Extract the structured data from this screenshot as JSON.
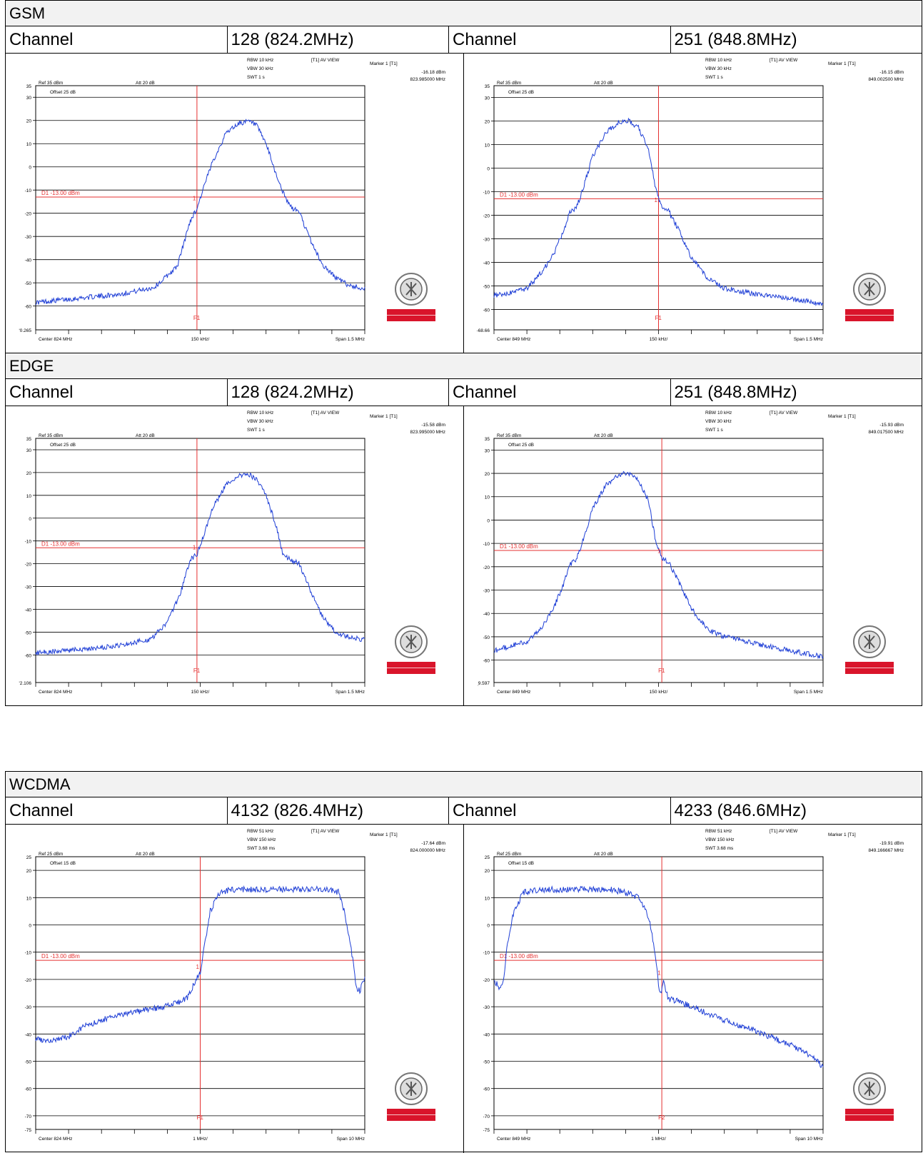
{
  "sections": [
    {
      "title": "GSM",
      "channel_label": "Channel",
      "channels": [
        "128 (824.2MHz)",
        "251 (848.8MHz)"
      ]
    },
    {
      "title": "EDGE",
      "channel_label": "Channel",
      "channels": [
        "128 (824.2MHz)",
        "251 (848.8MHz)"
      ]
    },
    {
      "title": "WCDMA",
      "channel_label": "Channel",
      "channels": [
        "4132 (826.4MHz)",
        "4233 (846.6MHz)"
      ]
    }
  ],
  "colors": {
    "trace": "#1f3fd6",
    "limit": "#e53030",
    "grid": "#000000",
    "logo_red": "#d9142b"
  },
  "logo": {
    "text": "BUREAU VERITAS",
    "year": "1828"
  },
  "chart_data": [
    {
      "type": "line",
      "section": "GSM",
      "channel": "128 (824.2MHz)",
      "rbw": "RBW 10 kHz",
      "vbw": "VBW 30 kHz",
      "swt": "SWT 1 s",
      "view": "[T1] AV VIEW",
      "marker_label": "Marker 1 [T1]",
      "marker_value": "-16.18 dBm",
      "marker_freq": "823.985000 MHz",
      "ref": "Ref 35 dBm",
      "att": "Att  20 dB",
      "offset": "Offset 25 dB",
      "limit_label": "D1 -13.00 dBm",
      "limit": -13,
      "marker_x": 0.49,
      "f1_label": "F1",
      "ylim": [
        -70.265,
        35
      ],
      "yticks": [
        30,
        20,
        10,
        0,
        -10,
        -20,
        -30,
        -40,
        -50,
        -60
      ],
      "ymin_label": "ʹ0.265",
      "ymax_label": "35",
      "center": "Center 824 MHz",
      "per_div": "150 kHz/",
      "span": "Span 1.5 MHz",
      "profile": [
        [
          0,
          -58.5
        ],
        [
          0.1,
          -57
        ],
        [
          0.25,
          -55
        ],
        [
          0.36,
          -52
        ],
        [
          0.43,
          -43
        ],
        [
          0.47,
          -23
        ],
        [
          0.49,
          -18
        ],
        [
          0.51,
          -9
        ],
        [
          0.54,
          3
        ],
        [
          0.58,
          15
        ],
        [
          0.62,
          19
        ],
        [
          0.65,
          19.5
        ],
        [
          0.67,
          18
        ],
        [
          0.7,
          10
        ],
        [
          0.73,
          -3
        ],
        [
          0.76,
          -14
        ],
        [
          0.78,
          -18
        ],
        [
          0.8,
          -19
        ],
        [
          0.83,
          -30
        ],
        [
          0.87,
          -42
        ],
        [
          0.91,
          -47.5
        ],
        [
          0.95,
          -51
        ],
        [
          1,
          -52.5
        ]
      ]
    },
    {
      "type": "line",
      "section": "GSM",
      "channel": "251 (848.8MHz)",
      "rbw": "RBW 10 kHz",
      "vbw": "VBW 30 kHz",
      "swt": "SWT 1 s",
      "view": "[T1] AV VIEW",
      "marker_label": "Marker 1 [T1]",
      "marker_value": "-16.15 dBm",
      "marker_freq": "849.002500 MHz",
      "ref": "Ref 35 dBm",
      "att": "Att  20 dB",
      "offset": "Offset 25 dB",
      "limit_label": "D1 -13.00 dBm",
      "limit": -13,
      "marker_x": 0.5,
      "f1_label": "F1",
      "ylim": [
        -68.66,
        35
      ],
      "yticks": [
        30,
        20,
        10,
        0,
        -10,
        -20,
        -30,
        -40,
        -50,
        -60
      ],
      "ymin_label": "-68.66",
      "ymax_label": "35",
      "center": "Center 849 MHz",
      "per_div": "150 kHz/",
      "span": "Span 1.5 MHz",
      "profile": [
        [
          0,
          -54
        ],
        [
          0.05,
          -53
        ],
        [
          0.1,
          -51
        ],
        [
          0.14,
          -45
        ],
        [
          0.18,
          -37
        ],
        [
          0.21,
          -27
        ],
        [
          0.23,
          -19
        ],
        [
          0.25,
          -17
        ],
        [
          0.27,
          -9
        ],
        [
          0.3,
          5
        ],
        [
          0.34,
          15
        ],
        [
          0.38,
          19.5
        ],
        [
          0.41,
          20
        ],
        [
          0.44,
          17
        ],
        [
          0.47,
          8
        ],
        [
          0.49,
          -8
        ],
        [
          0.51,
          -17
        ],
        [
          0.53,
          -18
        ],
        [
          0.56,
          -26
        ],
        [
          0.6,
          -38
        ],
        [
          0.65,
          -47
        ],
        [
          0.7,
          -51
        ],
        [
          0.8,
          -53.5
        ],
        [
          0.9,
          -55.5
        ],
        [
          1,
          -57.5
        ]
      ]
    },
    {
      "type": "line",
      "section": "EDGE",
      "channel": "128 (824.2MHz)",
      "rbw": "RBW 10 kHz",
      "vbw": "VBW 30 kHz",
      "swt": "SWT 1 s",
      "view": "[T1] AV VIEW",
      "marker_label": "Marker 1 [T1]",
      "marker_value": "-15.58 dBm",
      "marker_freq": "823.995000 MHz",
      "ref": "Ref 35 dBm",
      "att": "Att  20 dB",
      "offset": "Offset 25 dB",
      "limit_label": "D1 -13.00 dBm",
      "limit": -13,
      "marker_x": 0.49,
      "f1_label": "F1",
      "ylim": [
        -72.106,
        35
      ],
      "yticks": [
        30,
        20,
        10,
        0,
        -10,
        -20,
        -30,
        -40,
        -50,
        -60
      ],
      "ymin_label": "ʹ2.106",
      "ymax_label": "35",
      "center": "Center 824 MHz",
      "per_div": "150 kHz/",
      "span": "Span 1.5 MHz",
      "profile": [
        [
          0,
          -59
        ],
        [
          0.1,
          -58
        ],
        [
          0.25,
          -56
        ],
        [
          0.35,
          -53
        ],
        [
          0.4,
          -46
        ],
        [
          0.44,
          -33
        ],
        [
          0.47,
          -18
        ],
        [
          0.49,
          -16
        ],
        [
          0.51,
          -8
        ],
        [
          0.54,
          5
        ],
        [
          0.58,
          15
        ],
        [
          0.62,
          19
        ],
        [
          0.65,
          19
        ],
        [
          0.67,
          17
        ],
        [
          0.7,
          10
        ],
        [
          0.73,
          -3
        ],
        [
          0.75,
          -15
        ],
        [
          0.77,
          -18
        ],
        [
          0.8,
          -20
        ],
        [
          0.83,
          -30
        ],
        [
          0.87,
          -43
        ],
        [
          0.91,
          -50
        ],
        [
          0.95,
          -52
        ],
        [
          1,
          -53.5
        ]
      ]
    },
    {
      "type": "line",
      "section": "EDGE",
      "channel": "251 (848.8MHz)",
      "rbw": "RBW 10 kHz",
      "vbw": "VBW 30 kHz",
      "swt": "SWT 1 s",
      "view": "[T1] AV VIEW",
      "marker_label": "Marker 1 [T1]",
      "marker_value": "-15.93 dBm",
      "marker_freq": "849.017500 MHz",
      "ref": "Ref 35 dBm",
      "att": "Att  20 dB",
      "offset": "Offset 25 dB",
      "limit_label": "D1 -13.00 dBm",
      "limit": -13,
      "marker_x": 0.51,
      "f1_label": "F1",
      "ylim": [
        -69.597,
        35
      ],
      "yticks": [
        30,
        20,
        10,
        0,
        -10,
        -20,
        -30,
        -40,
        -50,
        -60
      ],
      "ymin_label": "ͅ9.597",
      "ymax_label": "35",
      "center": "Center 849 MHz",
      "per_div": "150 kHz/",
      "span": "Span 1.5 MHz",
      "profile": [
        [
          0,
          -56
        ],
        [
          0.05,
          -54
        ],
        [
          0.1,
          -52
        ],
        [
          0.14,
          -47
        ],
        [
          0.18,
          -38
        ],
        [
          0.21,
          -28
        ],
        [
          0.23,
          -19
        ],
        [
          0.25,
          -17
        ],
        [
          0.27,
          -9
        ],
        [
          0.3,
          5
        ],
        [
          0.34,
          15
        ],
        [
          0.38,
          19.5
        ],
        [
          0.41,
          20
        ],
        [
          0.44,
          17
        ],
        [
          0.47,
          8
        ],
        [
          0.49,
          -8
        ],
        [
          0.51,
          -16
        ],
        [
          0.53,
          -18
        ],
        [
          0.56,
          -26
        ],
        [
          0.6,
          -38
        ],
        [
          0.65,
          -47
        ],
        [
          0.7,
          -50
        ],
        [
          0.8,
          -53
        ],
        [
          0.9,
          -56
        ],
        [
          1,
          -58.5
        ]
      ]
    },
    {
      "type": "line",
      "section": "WCDMA",
      "channel": "4132 (826.4MHz)",
      "rbw": "RBW 51 kHz",
      "vbw": "VBW 150 kHz",
      "swt": "SWT 3.68 ms",
      "view": "[T1] AV VIEW",
      "marker_label": "Marker 1 [T1]",
      "marker_value": "-17.64 dBm",
      "marker_freq": "824.000000 MHz",
      "ref": "Ref 25 dBm",
      "att": "Att  20 dB",
      "offset": "Offset 15 dB",
      "limit_label": "D1 -13.00 dBm",
      "limit": -13,
      "marker_x": 0.5,
      "f1_label": "F1",
      "ylim": [
        -75,
        25
      ],
      "yticks": [
        20,
        10,
        0,
        -10,
        -20,
        -30,
        -40,
        -50,
        -60,
        -70
      ],
      "ymin_label": "-75",
      "ymax_label": "25",
      "center": "Center 824 MHz",
      "per_div": "1 MHz/",
      "span": "Span 10 MHz",
      "profile": [
        [
          0,
          -42
        ],
        [
          0.04,
          -43
        ],
        [
          0.1,
          -41
        ],
        [
          0.15,
          -37
        ],
        [
          0.25,
          -33
        ],
        [
          0.35,
          -31
        ],
        [
          0.42,
          -29
        ],
        [
          0.46,
          -27
        ],
        [
          0.48,
          -22
        ],
        [
          0.49,
          -19
        ],
        [
          0.5,
          -18
        ],
        [
          0.51,
          -10
        ],
        [
          0.53,
          5
        ],
        [
          0.56,
          12
        ],
        [
          0.6,
          13
        ],
        [
          0.7,
          13
        ],
        [
          0.8,
          13
        ],
        [
          0.88,
          13
        ],
        [
          0.92,
          12
        ],
        [
          0.94,
          4
        ],
        [
          0.96,
          -10
        ],
        [
          0.975,
          -23
        ],
        [
          0.985,
          -24
        ],
        [
          1,
          -20
        ]
      ]
    },
    {
      "type": "line",
      "section": "WCDMA",
      "channel": "4233 (846.6MHz)",
      "rbw": "RBW 51 kHz",
      "vbw": "VBW 150 kHz",
      "swt": "SWT 3.68 ms",
      "view": "[T1] AV VIEW",
      "marker_label": "Marker 1 [T1]",
      "marker_value": "-19.91 dBm",
      "marker_freq": "849.166667 MHz",
      "ref": "Ref 25 dBm",
      "att": "Att  20 dB",
      "offset": "Offset 15 dB",
      "limit_label": "D1 -13.00 dBm",
      "limit": -13,
      "marker_x": 0.51,
      "f1_label": "F2",
      "ylim": [
        -75,
        25
      ],
      "yticks": [
        20,
        10,
        0,
        -10,
        -20,
        -30,
        -40,
        -50,
        -60,
        -70
      ],
      "ymin_label": "-75",
      "ymax_label": "25",
      "center": "Center 849 MHz",
      "per_div": "1 MHz/",
      "span": "Span 10 MHz",
      "profile": [
        [
          0,
          -20
        ],
        [
          0.015,
          -23
        ],
        [
          0.03,
          -20
        ],
        [
          0.04,
          -8
        ],
        [
          0.06,
          5
        ],
        [
          0.09,
          12
        ],
        [
          0.15,
          13
        ],
        [
          0.25,
          13
        ],
        [
          0.35,
          13
        ],
        [
          0.4,
          12
        ],
        [
          0.44,
          10
        ],
        [
          0.47,
          3
        ],
        [
          0.49,
          -10
        ],
        [
          0.5,
          -22
        ],
        [
          0.505,
          -26
        ],
        [
          0.515,
          -21
        ],
        [
          0.53,
          -27
        ],
        [
          0.56,
          -28
        ],
        [
          0.62,
          -31
        ],
        [
          0.7,
          -35
        ],
        [
          0.8,
          -39
        ],
        [
          0.9,
          -44
        ],
        [
          0.95,
          -47
        ],
        [
          1,
          -52
        ]
      ]
    }
  ]
}
